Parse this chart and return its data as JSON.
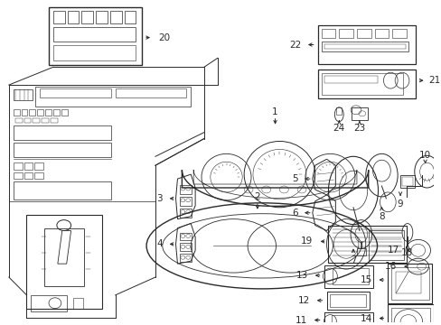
{
  "bg_color": "#ffffff",
  "gray": "#2a2a2a",
  "lw": 0.7,
  "figsize": [
    4.89,
    3.6
  ],
  "dpi": 100
}
